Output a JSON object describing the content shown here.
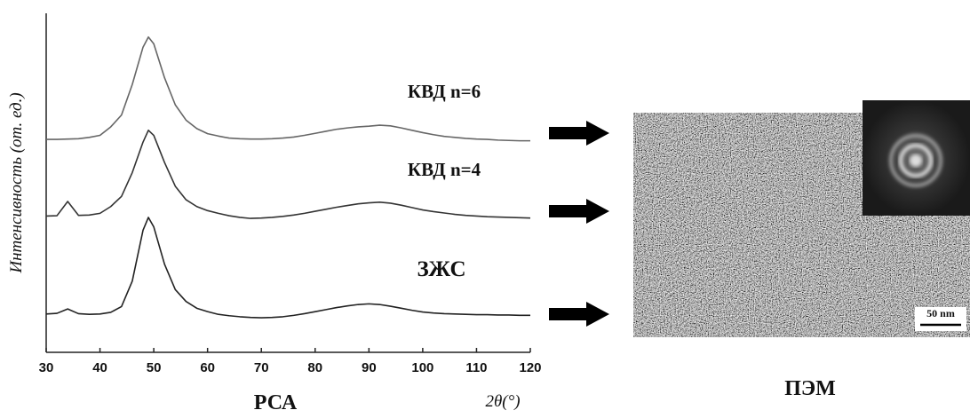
{
  "chart_data": {
    "type": "line",
    "ylabel": "Интенсивность (от. ед.)",
    "caption": "РСА",
    "xlabel": "2θ(°)",
    "xlim": [
      30,
      120
    ],
    "xticks": [
      30,
      40,
      50,
      60,
      70,
      80,
      90,
      100,
      110,
      120
    ],
    "ylim": [
      0,
      100
    ],
    "grid": false,
    "x": [
      30,
      32,
      34,
      36,
      38,
      40,
      42,
      44,
      46,
      48,
      49,
      50,
      52,
      54,
      56,
      58,
      60,
      62,
      64,
      66,
      68,
      70,
      72,
      74,
      76,
      78,
      80,
      82,
      84,
      86,
      88,
      90,
      92,
      94,
      96,
      98,
      100,
      102,
      104,
      106,
      108,
      110,
      112,
      114,
      116,
      118,
      120
    ],
    "series": [
      {
        "name": "КВД n=6",
        "color": "#666666",
        "values": [
          62.8,
          62.8,
          62.9,
          63.0,
          63.4,
          64.0,
          66.5,
          70,
          79,
          90,
          93,
          91,
          81,
          73,
          68.5,
          66,
          64.5,
          63.8,
          63.2,
          63.0,
          62.9,
          62.9,
          63.0,
          63.2,
          63.5,
          64.0,
          64.6,
          65.2,
          65.8,
          66.2,
          66.5,
          66.7,
          67.0,
          66.8,
          66.2,
          65.5,
          64.8,
          64.2,
          63.7,
          63.4,
          63.1,
          62.9,
          62.8,
          62.6,
          62.5,
          62.4,
          62.4
        ]
      },
      {
        "name": "КВД n=4",
        "color": "#333333",
        "values": [
          40.2,
          40.3,
          44.5,
          40.4,
          40.5,
          41,
          43,
          46,
          53,
          62,
          65.5,
          64,
          56,
          49,
          45,
          43,
          41.8,
          41,
          40.3,
          39.8,
          39.5,
          39.6,
          39.8,
          40.1,
          40.5,
          41,
          41.6,
          42.2,
          42.8,
          43.3,
          43.8,
          44.1,
          44.3,
          44,
          43.4,
          42.7,
          42,
          41.5,
          41.1,
          40.7,
          40.4,
          40.2,
          40,
          39.9,
          39.8,
          39.7,
          39.6
        ]
      },
      {
        "name": "ЗЖС",
        "color": "#222222",
        "values": [
          11.3,
          11.5,
          12.8,
          11.4,
          11.2,
          11.3,
          11.8,
          13.5,
          21,
          36,
          39.8,
          37,
          26,
          18.5,
          15,
          13,
          12,
          11.2,
          10.8,
          10.5,
          10.3,
          10.2,
          10.3,
          10.5,
          10.9,
          11.4,
          12,
          12.6,
          13.2,
          13.7,
          14.1,
          14.3,
          14.1,
          13.6,
          13,
          12.4,
          11.9,
          11.6,
          11.4,
          11.3,
          11.2,
          11.1,
          11.1,
          11,
          11,
          10.9,
          10.9
        ]
      }
    ]
  },
  "tem": {
    "title": "ПЭМ",
    "scale_bar": "50 nm"
  }
}
